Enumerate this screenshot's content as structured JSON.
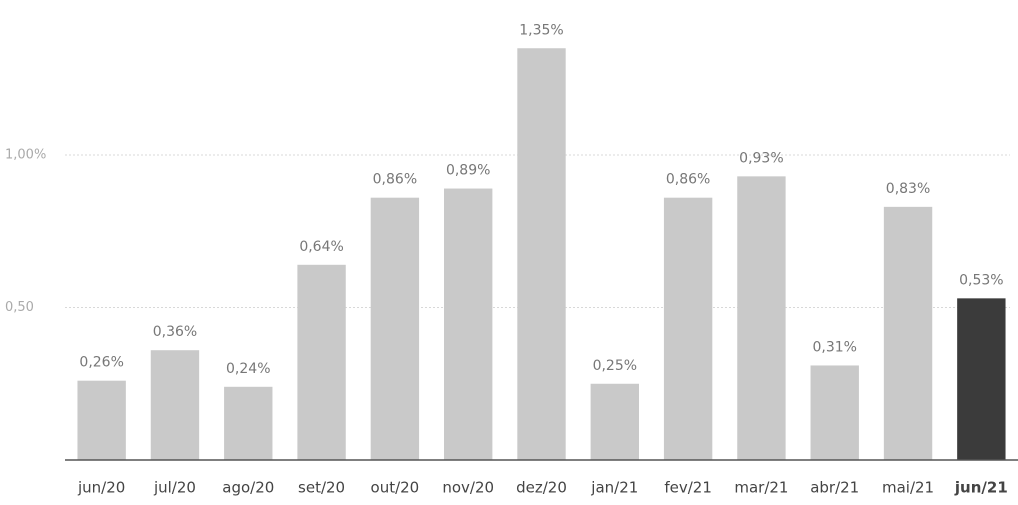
{
  "chart_data": {
    "type": "bar",
    "categories": [
      "jun/20",
      "jul/20",
      "ago/20",
      "set/20",
      "out/20",
      "nov/20",
      "dez/20",
      "jan/21",
      "fev/21",
      "mar/21",
      "abr/21",
      "mai/21",
      "jun/21"
    ],
    "values": [
      0.26,
      0.36,
      0.24,
      0.64,
      0.86,
      0.89,
      1.35,
      0.25,
      0.86,
      0.93,
      0.31,
      0.83,
      0.53
    ],
    "value_labels": [
      "0,26%",
      "0,36%",
      "0,24%",
      "0,64%",
      "0,86%",
      "0,89%",
      "1,35%",
      "0,25%",
      "0,86%",
      "0,93%",
      "0,31%",
      "0,83%",
      "0,53%"
    ],
    "colors": [
      "#c9c9c9",
      "#c9c9c9",
      "#c9c9c9",
      "#c9c9c9",
      "#c9c9c9",
      "#c9c9c9",
      "#c9c9c9",
      "#c9c9c9",
      "#c9c9c9",
      "#c9c9c9",
      "#c9c9c9",
      "#c9c9c9",
      "#3b3b3b"
    ],
    "ylim": [
      0,
      1.5
    ],
    "yticks": [
      {
        "value": 0.5,
        "label": "0,50"
      },
      {
        "value": 1,
        "label": "1,00%"
      }
    ],
    "grid": true
  }
}
